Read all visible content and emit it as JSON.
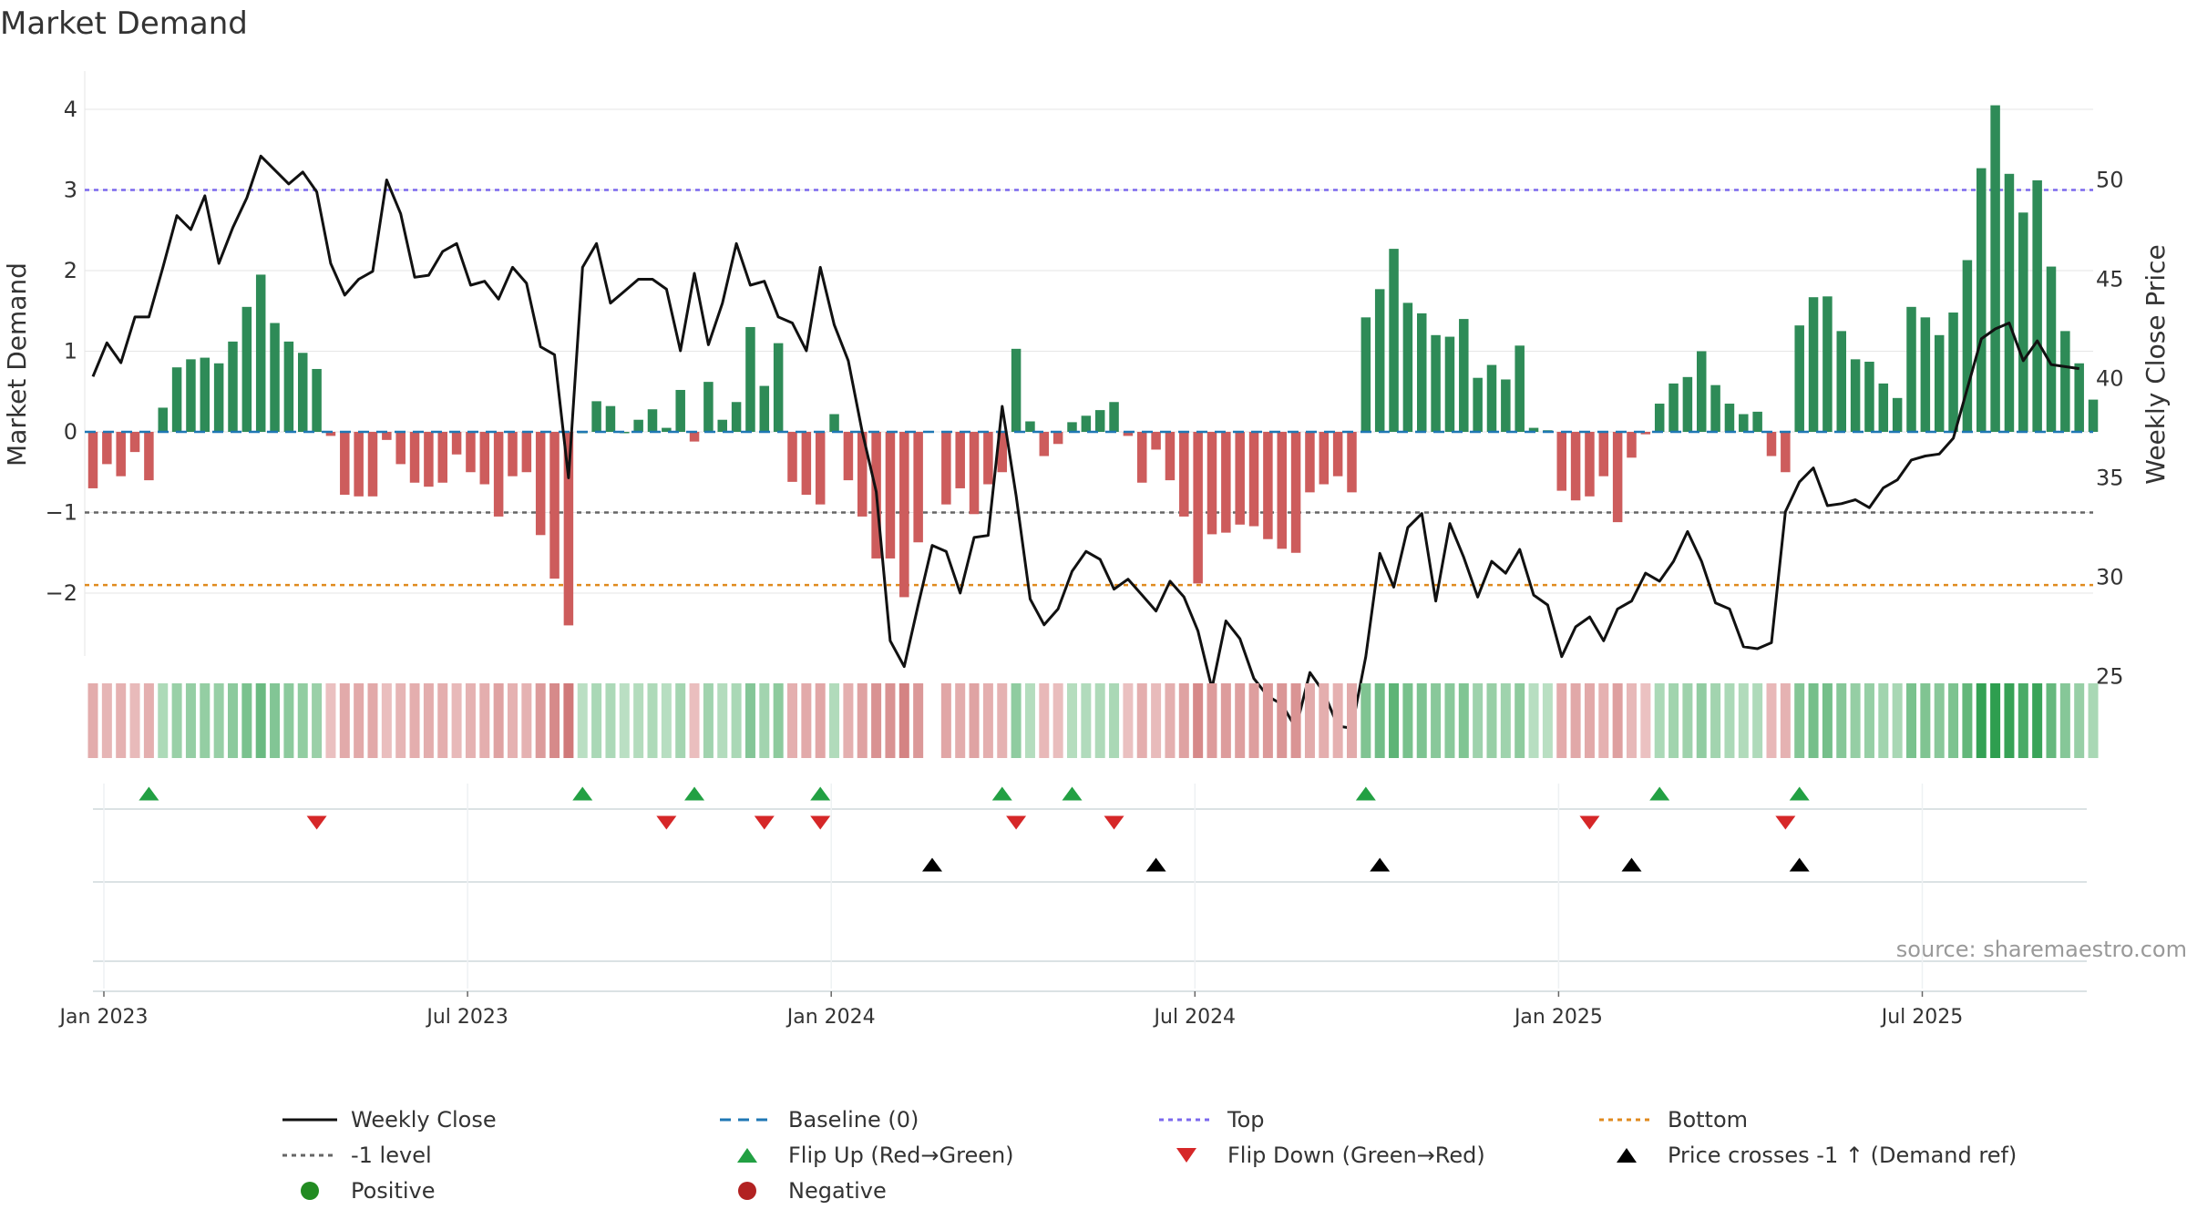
{
  "chart_data": {
    "type": "bar",
    "title": "Market Demand",
    "ylabel_left": "Market Demand",
    "ylabel_right": "Weekly Close Price",
    "source": "source: sharemaestro.com",
    "ylim_left": [
      -2.8,
      4.2
    ],
    "ylim_right": [
      22,
      50.5
    ],
    "yticks_left": [
      "4",
      "3",
      "2",
      "1",
      "0",
      "−1",
      "−2"
    ],
    "yticks_right": [
      "50",
      "45",
      "40",
      "35",
      "30",
      "25"
    ],
    "xticks": [
      {
        "label": "Jan 2023",
        "week": 0
      },
      {
        "label": "Jul 2023",
        "week": 26
      },
      {
        "label": "Jan 2024",
        "week": 52
      },
      {
        "label": "Jul 2024",
        "week": 78
      },
      {
        "label": "Jan 2025",
        "week": 104
      },
      {
        "label": "Jul 2025",
        "week": 130
      }
    ],
    "levels": {
      "top": 3.0,
      "minus_one": -1.0,
      "bottom": -1.9,
      "baseline": 0
    },
    "colors": {
      "positive": "#2e8b57",
      "negative": "#cd5c5c",
      "close": "#111111",
      "baseline": "#1f77b4",
      "top": "#7b68ee",
      "minus_one": "#666666",
      "bottom": "#e08a1e",
      "flip_up": "#22a043",
      "flip_down": "#d62728",
      "cross": "#000000",
      "legend_positive": "#228b22",
      "legend_negative": "#b22222"
    },
    "demand": [
      -0.7,
      -0.4,
      -0.55,
      -0.25,
      -0.6,
      0.3,
      0.8,
      0.9,
      0.92,
      0.85,
      1.12,
      1.55,
      1.95,
      1.35,
      1.12,
      0.98,
      0.78,
      -0.05,
      -0.78,
      -0.8,
      -0.8,
      -0.1,
      -0.4,
      -0.63,
      -0.68,
      -0.63,
      -0.28,
      -0.5,
      -0.65,
      -1.05,
      -0.55,
      -0.5,
      -1.28,
      -1.82,
      -2.4,
      0.0,
      0.38,
      0.32,
      0.0,
      0.15,
      0.28,
      0.05,
      0.52,
      -0.12,
      0.62,
      0.15,
      0.37,
      1.3,
      0.57,
      1.1,
      -0.62,
      -0.78,
      -0.9,
      0.22,
      -0.6,
      -1.05,
      -1.57,
      -1.57,
      -2.05,
      -1.37,
      null,
      -0.9,
      -0.7,
      -1.02,
      -0.65,
      -0.5,
      1.03,
      0.13,
      -0.3,
      -0.15,
      0.12,
      0.2,
      0.27,
      0.37,
      -0.05,
      -0.63,
      -0.22,
      -0.6,
      -1.05,
      -1.88,
      -1.27,
      -1.25,
      -1.15,
      -1.17,
      -1.33,
      -1.45,
      -1.5,
      -0.75,
      -0.65,
      -0.55,
      -0.75,
      1.42,
      1.77,
      2.27,
      1.6,
      1.47,
      1.2,
      1.18,
      1.4,
      0.67,
      0.83,
      0.65,
      1.07,
      0.05,
      0.02,
      -0.73,
      -0.85,
      -0.8,
      -0.55,
      -1.12,
      -0.32,
      -0.03,
      0.35,
      0.6,
      0.68,
      1.0,
      0.58,
      0.35,
      0.22,
      0.25,
      -0.3,
      -0.5,
      1.32,
      1.67,
      1.68,
      1.25,
      0.9,
      0.87,
      0.6,
      0.42,
      1.55,
      1.42,
      1.2,
      1.48,
      2.13,
      3.27,
      4.05,
      3.2,
      2.72,
      3.12,
      2.05,
      1.25,
      0.85,
      0.4
    ],
    "close": [
      40.1,
      41.8,
      40.8,
      43.1,
      43.1,
      45.6,
      48.2,
      47.5,
      49.2,
      45.8,
      47.6,
      49.1,
      51.2,
      50.5,
      49.8,
      50.4,
      49.4,
      45.8,
      44.2,
      45.0,
      45.4,
      50.0,
      48.3,
      45.1,
      45.2,
      46.4,
      46.8,
      44.7,
      44.9,
      44.0,
      45.6,
      44.8,
      41.6,
      41.2,
      35.0,
      45.6,
      46.8,
      43.8,
      44.4,
      45.0,
      45.0,
      44.5,
      41.4,
      45.3,
      41.7,
      43.8,
      46.8,
      44.7,
      44.9,
      43.1,
      42.8,
      41.4,
      45.6,
      42.7,
      40.9,
      37.3,
      34.3,
      26.8,
      25.5,
      28.6,
      31.6,
      31.3,
      29.2,
      32.0,
      32.1,
      38.6,
      34.1,
      28.9,
      27.6,
      28.4,
      30.3,
      31.3,
      30.9,
      29.4,
      29.9,
      29.1,
      28.3,
      29.8,
      29.0,
      27.3,
      24.4,
      27.8,
      26.9,
      24.9,
      24.0,
      23.6,
      22.4,
      25.2,
      24.2,
      22.5,
      22.4,
      26.0,
      31.2,
      29.5,
      32.5,
      33.2,
      28.8,
      32.7,
      31.0,
      29.0,
      30.8,
      30.2,
      31.4,
      29.1,
      28.6,
      26.0,
      27.5,
      28.0,
      26.8,
      28.4,
      28.8,
      30.2,
      29.8,
      30.8,
      32.3,
      30.8,
      28.7,
      28.4,
      26.5,
      26.4,
      26.7,
      33.3,
      34.8,
      35.5,
      33.6,
      33.7,
      33.9,
      33.5,
      34.5,
      34.9,
      35.9,
      36.1,
      36.2,
      37.0,
      39.5,
      42.0,
      42.5,
      42.8,
      40.9,
      41.9,
      40.7,
      40.6,
      40.5
    ],
    "flip_up": [
      4,
      35,
      43,
      52,
      65,
      70,
      91,
      112,
      122
    ],
    "flip_down": [
      16,
      41,
      48,
      52,
      66,
      73,
      107,
      121
    ],
    "price_crosses": [
      60,
      76,
      92,
      110,
      122
    ],
    "strip_max_abs": 4.1,
    "legend": [
      {
        "label": "Weekly Close",
        "symbol": "line"
      },
      {
        "label": "Baseline (0)",
        "symbol": "dash"
      },
      {
        "label": "Top",
        "symbol": "dot-top"
      },
      {
        "label": "Bottom",
        "symbol": "dot-bottom"
      },
      {
        "label": "-1 level",
        "symbol": "dot-minus"
      },
      {
        "label": "Flip Up (Red→Green)",
        "symbol": "tri-up"
      },
      {
        "label": "Flip Down (Green→Red)",
        "symbol": "tri-down"
      },
      {
        "label": "Price crosses -1 ↑ (Demand ref)",
        "symbol": "tri-black"
      },
      {
        "label": "Positive",
        "symbol": "dot-pos"
      },
      {
        "label": "Negative",
        "symbol": "dot-neg"
      }
    ]
  }
}
